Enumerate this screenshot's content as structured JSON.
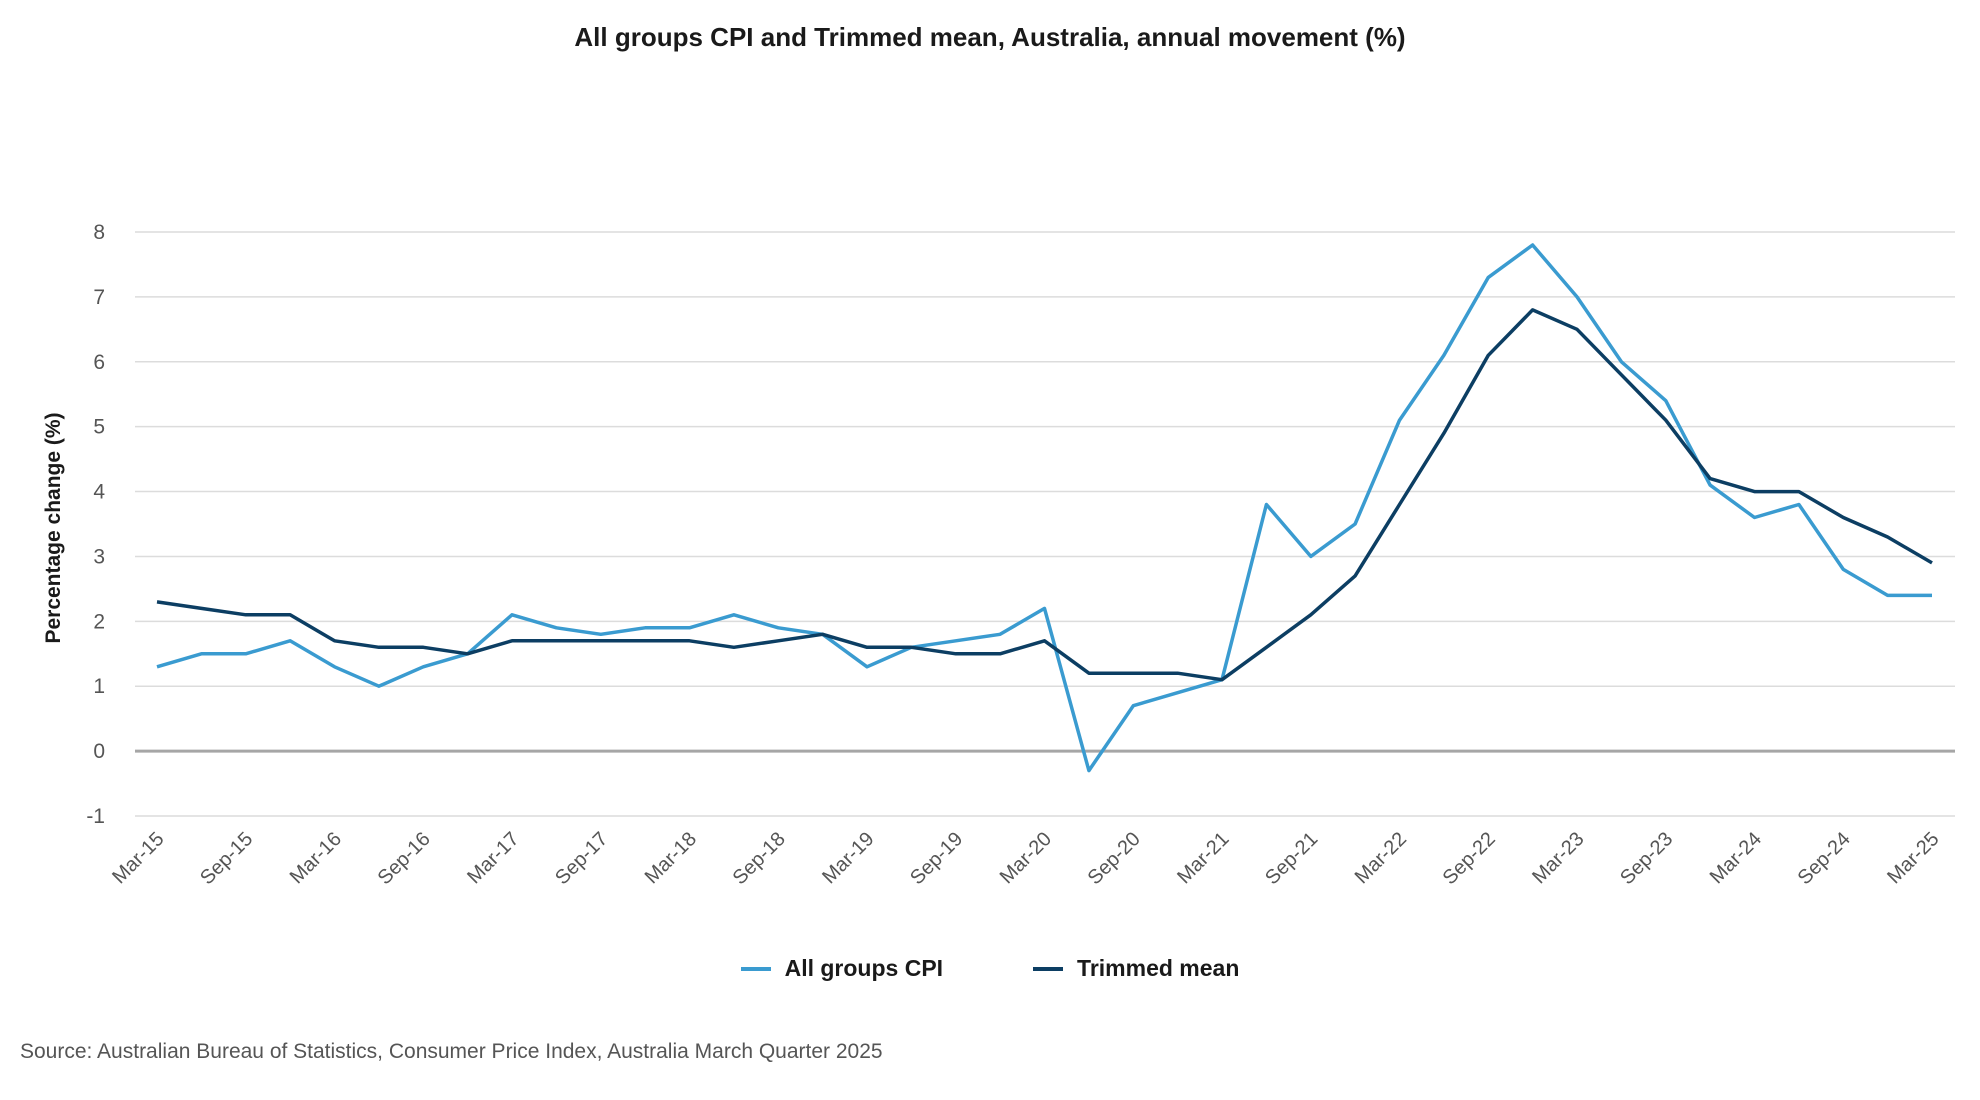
{
  "chart_data": {
    "type": "line",
    "title": "All groups CPI and Trimmed mean, Australia, annual movement (%)",
    "ylabel": "Percentage change (%)",
    "xlabel": "",
    "ylim": [
      -1,
      8
    ],
    "yticks": [
      -1,
      0,
      1,
      2,
      3,
      4,
      5,
      6,
      7,
      8
    ],
    "grid": true,
    "legend_position": "bottom",
    "x_tick_labels": [
      "Mar-15",
      "Sep-15",
      "Mar-16",
      "Sep-16",
      "Mar-17",
      "Sep-17",
      "Mar-18",
      "Sep-18",
      "Mar-19",
      "Sep-19",
      "Mar-20",
      "Sep-20",
      "Mar-21",
      "Sep-21",
      "Mar-22",
      "Sep-22",
      "Mar-23",
      "Sep-23",
      "Mar-24",
      "Sep-24",
      "Mar-25"
    ],
    "quarters": [
      "Mar-15",
      "Jun-15",
      "Sep-15",
      "Dec-15",
      "Mar-16",
      "Jun-16",
      "Sep-16",
      "Dec-16",
      "Mar-17",
      "Jun-17",
      "Sep-17",
      "Dec-17",
      "Mar-18",
      "Jun-18",
      "Sep-18",
      "Dec-18",
      "Mar-19",
      "Jun-19",
      "Sep-19",
      "Dec-19",
      "Mar-20",
      "Jun-20",
      "Sep-20",
      "Dec-20",
      "Mar-21",
      "Jun-21",
      "Sep-21",
      "Dec-21",
      "Mar-22",
      "Jun-22",
      "Sep-22",
      "Dec-22",
      "Mar-23",
      "Jun-23",
      "Sep-23",
      "Dec-23",
      "Mar-24",
      "Jun-24",
      "Sep-24",
      "Dec-24",
      "Mar-25"
    ],
    "series": [
      {
        "name": "All groups CPI",
        "color": "#3a9bd0",
        "values": [
          1.3,
          1.5,
          1.5,
          1.7,
          1.3,
          1.0,
          1.3,
          1.5,
          2.1,
          1.9,
          1.8,
          1.9,
          1.9,
          2.1,
          1.9,
          1.8,
          1.3,
          1.6,
          1.7,
          1.8,
          2.2,
          -0.3,
          0.7,
          0.9,
          1.1,
          3.8,
          3.0,
          3.5,
          5.1,
          6.1,
          7.3,
          7.8,
          7.0,
          6.0,
          5.4,
          4.1,
          3.6,
          3.8,
          2.8,
          2.4,
          2.4
        ]
      },
      {
        "name": "Trimmed mean",
        "color": "#0c3e63",
        "values": [
          2.3,
          2.2,
          2.1,
          2.1,
          1.7,
          1.6,
          1.6,
          1.5,
          1.7,
          1.7,
          1.7,
          1.7,
          1.7,
          1.6,
          1.7,
          1.8,
          1.6,
          1.6,
          1.5,
          1.5,
          1.7,
          1.2,
          1.2,
          1.2,
          1.1,
          1.6,
          2.1,
          2.7,
          3.8,
          4.9,
          6.1,
          6.8,
          6.5,
          5.8,
          5.1,
          4.2,
          4.0,
          4.0,
          3.6,
          3.3,
          2.9
        ]
      }
    ]
  },
  "source": "Source: Australian Bureau of Statistics, Consumer Price Index, Australia March Quarter 2025",
  "colors": {
    "grid": "#dcdcdc",
    "zero_line": "#a6a6a6",
    "axis_text": "#555555"
  }
}
